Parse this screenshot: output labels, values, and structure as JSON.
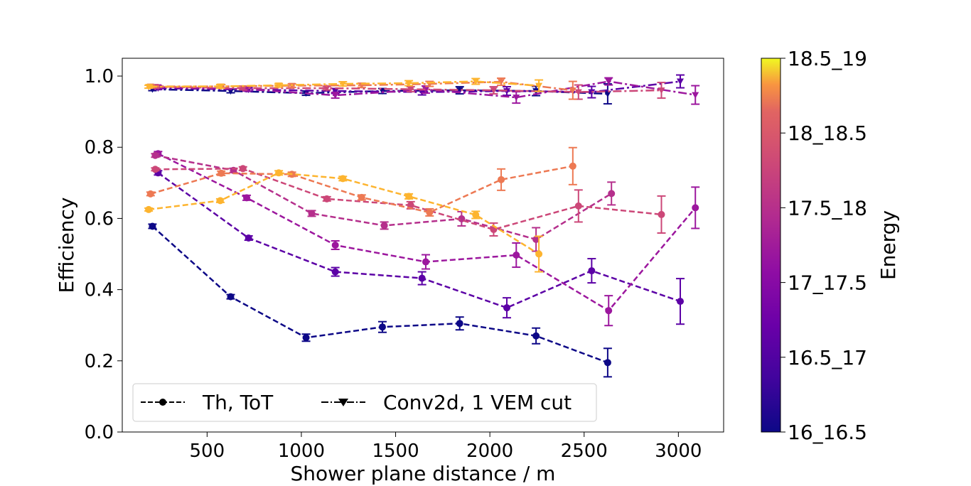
{
  "chart_data": {
    "type": "line",
    "title": "",
    "xlabel": "Shower plane distance / m",
    "ylabel": "Efficiency",
    "xlim": [
      50,
      3240
    ],
    "ylim": [
      0.0,
      1.05
    ],
    "xticks": [
      500,
      1000,
      1500,
      2000,
      2500,
      3000
    ],
    "yticks": [
      0.0,
      0.2,
      0.4,
      0.6,
      0.8,
      1.0
    ],
    "grid": false,
    "legend": {
      "placement": "lower-left",
      "entries": [
        {
          "label": "Th, ToT",
          "linestyle": "dashed",
          "marker": "circle"
        },
        {
          "label": "Conv2d, 1 VEM cut",
          "linestyle": "dashdot",
          "marker": "triangle-down"
        }
      ]
    },
    "colorbar": {
      "label": "Energy",
      "tick_labels": [
        "16_16.5",
        "16.5_17",
        "17_17.5",
        "17.5_18",
        "18_18.5",
        "18.5_19"
      ],
      "colormap": "plasma",
      "colors": [
        "#0d0887",
        "#5c01a6",
        "#9c179e",
        "#cc4778",
        "#ed7953",
        "#fdb42f",
        "#f0f921"
      ]
    },
    "series": [
      {
        "energy": "16_16.5",
        "method": "Th, ToT",
        "color": "#0d0887",
        "x": [
          210,
          625,
          1025,
          1430,
          1840,
          2245,
          2625
        ],
        "y": [
          0.578,
          0.38,
          0.265,
          0.295,
          0.305,
          0.27,
          0.195
        ],
        "err": [
          0.006,
          0.006,
          0.01,
          0.015,
          0.018,
          0.022,
          0.04
        ]
      },
      {
        "energy": "16.5_17",
        "method": "Th, ToT",
        "color": "#5c01a6",
        "x": [
          240,
          720,
          1180,
          1640,
          2090,
          2540,
          3010
        ],
        "y": [
          0.728,
          0.545,
          0.45,
          0.432,
          0.349,
          0.453,
          0.367
        ],
        "err": [
          0.006,
          0.006,
          0.012,
          0.018,
          0.028,
          0.034,
          0.064
        ]
      },
      {
        "energy": "17_17.5",
        "method": "Th, ToT",
        "color": "#9c179e",
        "x": [
          240,
          710,
          1180,
          1660,
          2140,
          2630,
          3090
        ],
        "y": [
          0.782,
          0.658,
          0.525,
          0.478,
          0.497,
          0.341,
          0.63
        ],
        "err": [
          0.006,
          0.007,
          0.012,
          0.02,
          0.034,
          0.042,
          0.058
        ]
      },
      {
        "energy": "17_17.5b",
        "method": "Th, ToT",
        "color": "#b52f8c",
        "x": [
          225,
          640,
          1055,
          1440,
          1850,
          2245,
          2645
        ],
        "y": [
          0.777,
          0.735,
          0.614,
          0.58,
          0.599,
          0.541,
          0.67
        ],
        "err": [
          0.005,
          0.006,
          0.008,
          0.01,
          0.02,
          0.033,
          0.032
        ]
      },
      {
        "energy": "17.5_18",
        "method": "Th, ToT",
        "color": "#cc4778",
        "x": [
          225,
          690,
          1135,
          1580,
          2020,
          2470,
          2910
        ],
        "y": [
          0.738,
          0.74,
          0.655,
          0.637,
          0.569,
          0.635,
          0.611
        ],
        "err": [
          0.004,
          0.005,
          0.006,
          0.01,
          0.018,
          0.045,
          0.052
        ]
      },
      {
        "energy": "18_18.5",
        "method": "Th, ToT",
        "color": "#ed7953",
        "x": [
          200,
          575,
          950,
          1320,
          1680,
          2060,
          2440
        ],
        "y": [
          0.669,
          0.727,
          0.724,
          0.659,
          0.617,
          0.709,
          0.747
        ],
        "err": [
          0.005,
          0.006,
          0.006,
          0.007,
          0.01,
          0.03,
          0.052
        ]
      },
      {
        "energy": "18.5_19",
        "method": "Th, ToT",
        "color": "#fdb42f",
        "x": [
          190,
          570,
          880,
          1220,
          1570,
          1925,
          2260
        ],
        "y": [
          0.625,
          0.65,
          0.728,
          0.712,
          0.662,
          0.61,
          0.5
        ],
        "err": [
          0.004,
          0.005,
          0.006,
          0.006,
          0.007,
          0.01,
          0.05
        ]
      },
      {
        "energy": "16_16.5",
        "method": "Conv2d, 1 VEM cut",
        "color": "#0d0887",
        "x": [
          210,
          625,
          1025,
          1430,
          1840,
          2245,
          2625
        ],
        "y": [
          0.963,
          0.958,
          0.952,
          0.958,
          0.96,
          0.958,
          0.95
        ],
        "err": [
          0.004,
          0.005,
          0.006,
          0.007,
          0.01,
          0.013,
          0.028
        ]
      },
      {
        "energy": "16.5_17",
        "method": "Conv2d, 1 VEM cut",
        "color": "#5c01a6",
        "x": [
          240,
          720,
          1180,
          1640,
          2090,
          2540,
          3010
        ],
        "y": [
          0.966,
          0.962,
          0.958,
          0.955,
          0.958,
          0.955,
          0.985
        ],
        "err": [
          0.004,
          0.005,
          0.007,
          0.008,
          0.012,
          0.016,
          0.018
        ]
      },
      {
        "energy": "17_17.5",
        "method": "Conv2d, 1 VEM cut",
        "color": "#9c179e",
        "x": [
          240,
          710,
          1180,
          1660,
          2140,
          2630,
          3090
        ],
        "y": [
          0.969,
          0.963,
          0.946,
          0.962,
          0.94,
          0.985,
          0.947
        ],
        "err": [
          0.004,
          0.005,
          0.008,
          0.01,
          0.016,
          0.01,
          0.026
        ]
      },
      {
        "energy": "17.5_18",
        "method": "Conv2d, 1 VEM cut",
        "color": "#cc4778",
        "x": [
          225,
          690,
          1135,
          1580,
          2020,
          2470,
          2910
        ],
        "y": [
          0.97,
          0.966,
          0.966,
          0.963,
          0.96,
          0.955,
          0.96
        ],
        "err": [
          0.004,
          0.005,
          0.005,
          0.007,
          0.01,
          0.02,
          0.022
        ]
      },
      {
        "energy": "18_18.5",
        "method": "Conv2d, 1 VEM cut",
        "color": "#ed7953",
        "x": [
          200,
          575,
          950,
          1320,
          1680,
          2060,
          2440
        ],
        "y": [
          0.971,
          0.971,
          0.973,
          0.974,
          0.978,
          0.984,
          0.96
        ],
        "err": [
          0.004,
          0.005,
          0.005,
          0.006,
          0.007,
          0.01,
          0.025
        ]
      },
      {
        "energy": "18.5_19",
        "method": "Conv2d, 1 VEM cut",
        "color": "#fdb42f",
        "x": [
          190,
          570,
          880,
          1220,
          1570,
          1925,
          2260
        ],
        "y": [
          0.97,
          0.971,
          0.974,
          0.978,
          0.98,
          0.985,
          0.973
        ],
        "err": [
          0.004,
          0.005,
          0.005,
          0.006,
          0.007,
          0.008,
          0.016
        ]
      }
    ]
  }
}
